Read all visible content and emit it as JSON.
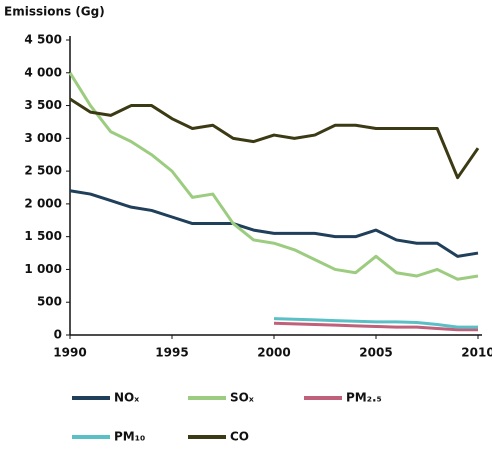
{
  "chart_data": {
    "type": "line",
    "title": "Emissions (Gg)",
    "x": [
      1990,
      1991,
      1992,
      1993,
      1994,
      1995,
      1996,
      1997,
      1998,
      1999,
      2000,
      2001,
      2002,
      2003,
      2004,
      2005,
      2006,
      2007,
      2008,
      2009,
      2010
    ],
    "xlim": [
      1990,
      2010
    ],
    "xticks": [
      1990,
      1995,
      2000,
      2005,
      2010
    ],
    "ylim": [
      0,
      4500
    ],
    "yticks": [
      0,
      500,
      {
        "value": 1000,
        "label": "1 000"
      },
      {
        "value": 1500,
        "label": "1 500"
      },
      {
        "value": 2000,
        "label": "2 000"
      },
      {
        "value": 2500,
        "label": "2 500"
      },
      {
        "value": 3000,
        "label": "3 000"
      },
      {
        "value": 3500,
        "label": "3 500"
      },
      {
        "value": 4000,
        "label": "4 000"
      },
      {
        "value": 4500,
        "label": "4 500"
      }
    ],
    "grid": false,
    "series": [
      {
        "name": "NOₓ",
        "color": "#1f3f5a",
        "values": [
          2200,
          2150,
          2050,
          1950,
          1900,
          1800,
          1700,
          1700,
          1700,
          1600,
          1550,
          1550,
          1550,
          1500,
          1500,
          1600,
          1450,
          1400,
          1400,
          1200,
          1250
        ]
      },
      {
        "name": "SOₓ",
        "color": "#9ccc7f",
        "values": [
          4000,
          3500,
          3100,
          2950,
          2750,
          2500,
          2100,
          2150,
          1700,
          1450,
          1400,
          1300,
          1150,
          1000,
          950,
          1200,
          950,
          900,
          1000,
          850,
          900
        ]
      },
      {
        "name": "PM₂.₅",
        "color": "#c0607a",
        "values": [
          null,
          null,
          null,
          null,
          null,
          null,
          null,
          null,
          null,
          null,
          180,
          170,
          160,
          150,
          140,
          130,
          120,
          120,
          100,
          80,
          80
        ]
      },
      {
        "name": "PM₁₀",
        "color": "#5bbfc6",
        "values": [
          null,
          null,
          null,
          null,
          null,
          null,
          null,
          null,
          null,
          null,
          250,
          240,
          230,
          220,
          210,
          200,
          200,
          190,
          160,
          120,
          120
        ]
      },
      {
        "name": "CO",
        "color": "#3b3a14",
        "values": [
          3600,
          3400,
          3350,
          3500,
          3500,
          3300,
          3150,
          3200,
          3000,
          2950,
          3050,
          3000,
          3050,
          3200,
          3200,
          3150,
          3150,
          3150,
          3150,
          2400,
          2850
        ]
      }
    ]
  }
}
